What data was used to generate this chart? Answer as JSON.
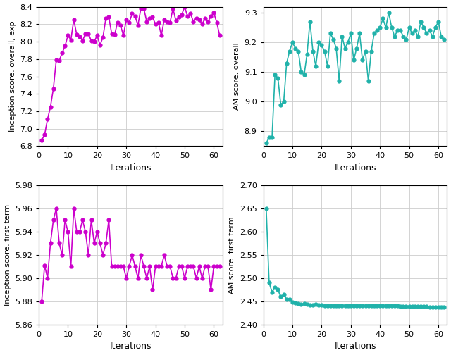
{
  "magenta_color": "#CC00CC",
  "teal_color": "#20B2AA",
  "marker_size": 3.5,
  "line_width": 1.2,
  "subplot1": {
    "xlabel": "Iterations",
    "ylabel": "Inception score: overall, exp",
    "x": [
      1,
      2,
      3,
      4,
      5,
      6,
      7,
      8,
      9,
      10,
      11,
      12,
      13,
      14,
      15,
      16,
      17,
      18,
      19,
      20,
      21,
      22,
      23,
      24,
      25,
      26,
      27,
      28,
      29,
      30,
      31,
      32,
      33,
      34,
      35,
      36,
      37,
      38,
      39,
      40,
      41,
      42,
      43,
      44,
      45,
      46,
      47,
      48,
      49,
      50,
      51,
      52,
      53,
      54,
      55,
      56,
      57,
      58,
      59,
      60,
      61,
      62
    ],
    "y": [
      6.87,
      6.93,
      7.11,
      7.25,
      7.46,
      7.79,
      7.78,
      7.87,
      7.95,
      8.07,
      8.02,
      8.25,
      8.08,
      8.06,
      8.01,
      8.09,
      8.09,
      8.01,
      8.0,
      8.07,
      7.96,
      8.05,
      8.27,
      8.28,
      8.09,
      8.08,
      8.22,
      8.19,
      8.07,
      8.25,
      8.22,
      8.32,
      8.29,
      8.19,
      8.38,
      8.38,
      8.23,
      8.27,
      8.28,
      8.2,
      8.22,
      8.07,
      8.25,
      8.23,
      8.22,
      8.38,
      8.24,
      8.28,
      8.31,
      8.4,
      8.29,
      8.32,
      8.23,
      8.27,
      8.25,
      8.2,
      8.27,
      8.23,
      8.29,
      8.33,
      8.22,
      8.07
    ],
    "ylim": [
      6.8,
      8.4
    ],
    "yticks": [
      6.8,
      7.0,
      7.2,
      7.4,
      7.6,
      7.8,
      8.0,
      8.2,
      8.4
    ],
    "xlim": [
      0,
      63
    ],
    "xticks": [
      0,
      10,
      20,
      30,
      40,
      50,
      60
    ]
  },
  "subplot2": {
    "xlabel": "Iterations",
    "ylabel": "AM score: overall",
    "x": [
      1,
      2,
      3,
      4,
      5,
      6,
      7,
      8,
      9,
      10,
      11,
      12,
      13,
      14,
      15,
      16,
      17,
      18,
      19,
      20,
      21,
      22,
      23,
      24,
      25,
      26,
      27,
      28,
      29,
      30,
      31,
      32,
      33,
      34,
      35,
      36,
      37,
      38,
      39,
      40,
      41,
      42,
      43,
      44,
      45,
      46,
      47,
      48,
      49,
      50,
      51,
      52,
      53,
      54,
      55,
      56,
      57,
      58,
      59,
      60,
      61,
      62
    ],
    "y": [
      8.86,
      8.88,
      8.88,
      9.09,
      9.08,
      8.99,
      9.0,
      9.13,
      9.17,
      9.2,
      9.18,
      9.17,
      9.1,
      9.09,
      9.16,
      9.27,
      9.17,
      9.12,
      9.2,
      9.19,
      9.17,
      9.12,
      9.23,
      9.21,
      9.18,
      9.07,
      9.22,
      9.18,
      9.2,
      9.23,
      9.14,
      9.18,
      9.23,
      9.14,
      9.17,
      9.07,
      9.17,
      9.23,
      9.24,
      9.25,
      9.28,
      9.25,
      9.3,
      9.25,
      9.22,
      9.24,
      9.24,
      9.22,
      9.21,
      9.25,
      9.23,
      9.24,
      9.22,
      9.27,
      9.25,
      9.23,
      9.24,
      9.22,
      9.25,
      9.27,
      9.22,
      9.21
    ],
    "ylim": [
      8.85,
      9.32
    ],
    "yticks": [
      8.9,
      9.0,
      9.1,
      9.2,
      9.3
    ],
    "xlim": [
      0,
      63
    ],
    "xticks": [
      0,
      10,
      20,
      30,
      40,
      50,
      60
    ]
  },
  "subplot3": {
    "xlabel": "Iterations",
    "ylabel": "Inception score: first term",
    "x": [
      1,
      2,
      3,
      4,
      5,
      6,
      7,
      8,
      9,
      10,
      11,
      12,
      13,
      14,
      15,
      16,
      17,
      18,
      19,
      20,
      21,
      22,
      23,
      24,
      25,
      26,
      27,
      28,
      29,
      30,
      31,
      32,
      33,
      34,
      35,
      36,
      37,
      38,
      39,
      40,
      41,
      42,
      43,
      44,
      45,
      46,
      47,
      48,
      49,
      50,
      51,
      52,
      53,
      54,
      55,
      56,
      57,
      58,
      59,
      60,
      61,
      62
    ],
    "y": [
      5.88,
      5.911,
      5.9,
      5.93,
      5.95,
      5.96,
      5.93,
      5.92,
      5.95,
      5.94,
      5.91,
      5.96,
      5.94,
      5.94,
      5.95,
      5.94,
      5.92,
      5.95,
      5.93,
      5.94,
      5.93,
      5.92,
      5.93,
      5.95,
      5.91,
      5.91,
      5.91,
      5.91,
      5.91,
      5.9,
      5.91,
      5.92,
      5.91,
      5.9,
      5.92,
      5.91,
      5.9,
      5.91,
      5.89,
      5.91,
      5.91,
      5.91,
      5.92,
      5.91,
      5.91,
      5.9,
      5.9,
      5.91,
      5.91,
      5.9,
      5.91,
      5.91,
      5.91,
      5.9,
      5.91,
      5.9,
      5.91,
      5.91,
      5.89,
      5.91,
      5.91,
      5.91
    ],
    "ylim": [
      5.86,
      5.98
    ],
    "yticks": [
      5.86,
      5.88,
      5.9,
      5.92,
      5.94,
      5.96,
      5.98
    ],
    "xlim": [
      0,
      63
    ],
    "xticks": [
      0,
      10,
      20,
      30,
      40,
      50,
      60
    ]
  },
  "subplot4": {
    "xlabel": "Iterations",
    "ylabel": "AM score: first term",
    "x": [
      1,
      2,
      3,
      4,
      5,
      6,
      7,
      8,
      9,
      10,
      11,
      12,
      13,
      14,
      15,
      16,
      17,
      18,
      19,
      20,
      21,
      22,
      23,
      24,
      25,
      26,
      27,
      28,
      29,
      30,
      31,
      32,
      33,
      34,
      35,
      36,
      37,
      38,
      39,
      40,
      41,
      42,
      43,
      44,
      45,
      46,
      47,
      48,
      49,
      50,
      51,
      52,
      53,
      54,
      55,
      56,
      57,
      58,
      59,
      60,
      61,
      62
    ],
    "y": [
      2.65,
      2.49,
      2.47,
      2.48,
      2.475,
      2.46,
      2.465,
      2.455,
      2.455,
      2.448,
      2.447,
      2.445,
      2.443,
      2.445,
      2.443,
      2.442,
      2.442,
      2.443,
      2.442,
      2.442,
      2.441,
      2.441,
      2.441,
      2.441,
      2.441,
      2.441,
      2.441,
      2.441,
      2.44,
      2.44,
      2.44,
      2.44,
      2.44,
      2.44,
      2.44,
      2.44,
      2.44,
      2.44,
      2.44,
      2.44,
      2.44,
      2.44,
      2.44,
      2.44,
      2.44,
      2.44,
      2.439,
      2.439,
      2.439,
      2.439,
      2.439,
      2.439,
      2.439,
      2.439,
      2.439,
      2.439,
      2.438,
      2.438,
      2.438,
      2.438,
      2.438,
      2.438
    ],
    "ylim": [
      2.4,
      2.7
    ],
    "yticks": [
      2.4,
      2.45,
      2.5,
      2.55,
      2.6,
      2.65,
      2.7
    ],
    "xlim": [
      0,
      63
    ],
    "xticks": [
      0,
      10,
      20,
      30,
      40,
      50,
      60
    ]
  },
  "fig_width": 6.4,
  "fig_height": 5.04,
  "dpi": 100
}
